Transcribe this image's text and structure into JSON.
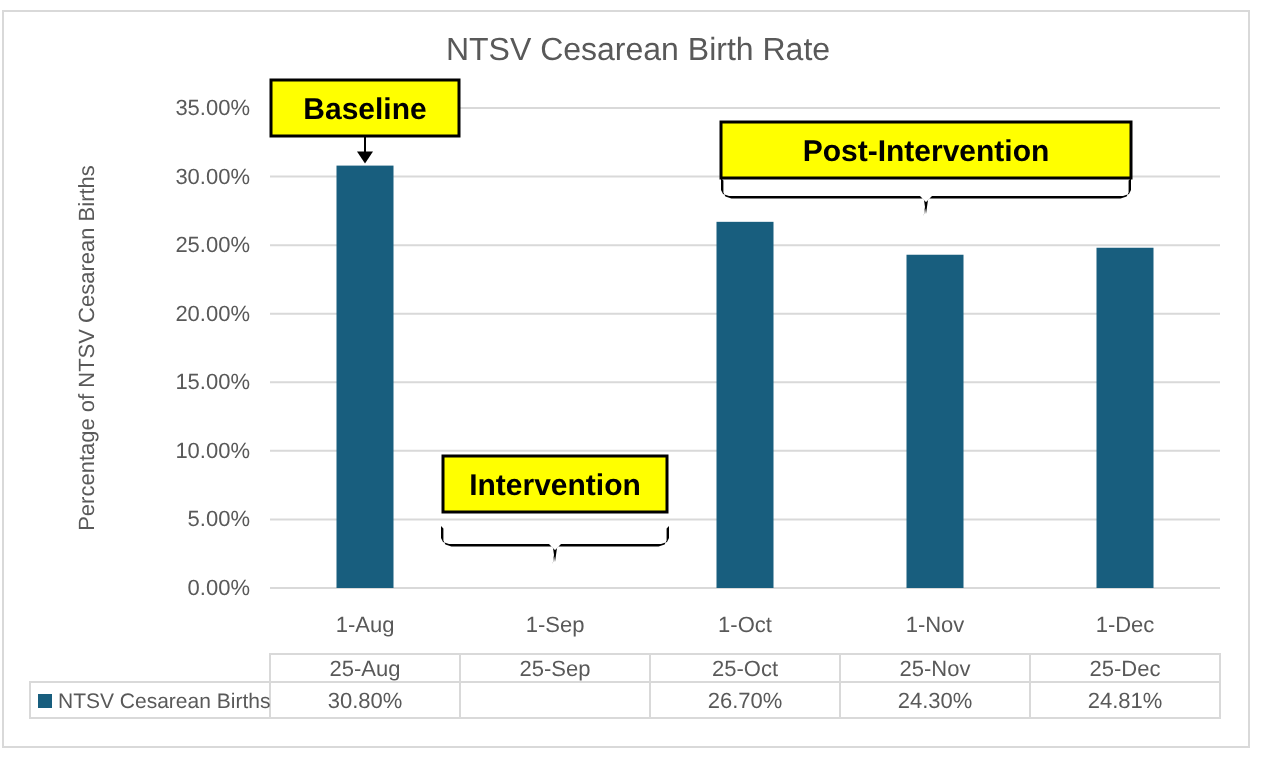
{
  "chart_data": {
    "type": "bar",
    "title": "NTSV Cesarean Birth Rate",
    "ylabel": "Percentage of NTSV Cesarean Births",
    "categories": [
      "1-Aug",
      "1-Sep",
      "1-Oct",
      "1-Nov",
      "1-Dec"
    ],
    "series": [
      {
        "name": "NTSV Cesarean Births",
        "color": "#185e7e",
        "values": [
          30.8,
          null,
          26.7,
          24.3,
          24.81
        ],
        "value_labels": [
          "30.80%",
          null,
          "26.70%",
          "24.30%",
          "24.81%"
        ]
      }
    ],
    "ylim": [
      0,
      35
    ],
    "yticks": [
      {
        "value": 0,
        "label": "0.00%"
      },
      {
        "value": 5,
        "label": "5.00%"
      },
      {
        "value": 10,
        "label": "10.00%"
      },
      {
        "value": 15,
        "label": "15.00%"
      },
      {
        "value": 20,
        "label": "20.00%"
      },
      {
        "value": 25,
        "label": "25.00%"
      },
      {
        "value": 30,
        "label": "30.00%"
      },
      {
        "value": 35,
        "label": "35.00%"
      }
    ],
    "grid": "y",
    "legend": "bottom",
    "annotations": [
      {
        "text": "Baseline",
        "x": "1-Aug",
        "y": 30.8
      },
      "Intervention",
      "Post-Intervention",
      "25-Aug",
      "25-Sep",
      "25-Oct",
      "25-Nov",
      "25-Dec"
    ]
  }
}
